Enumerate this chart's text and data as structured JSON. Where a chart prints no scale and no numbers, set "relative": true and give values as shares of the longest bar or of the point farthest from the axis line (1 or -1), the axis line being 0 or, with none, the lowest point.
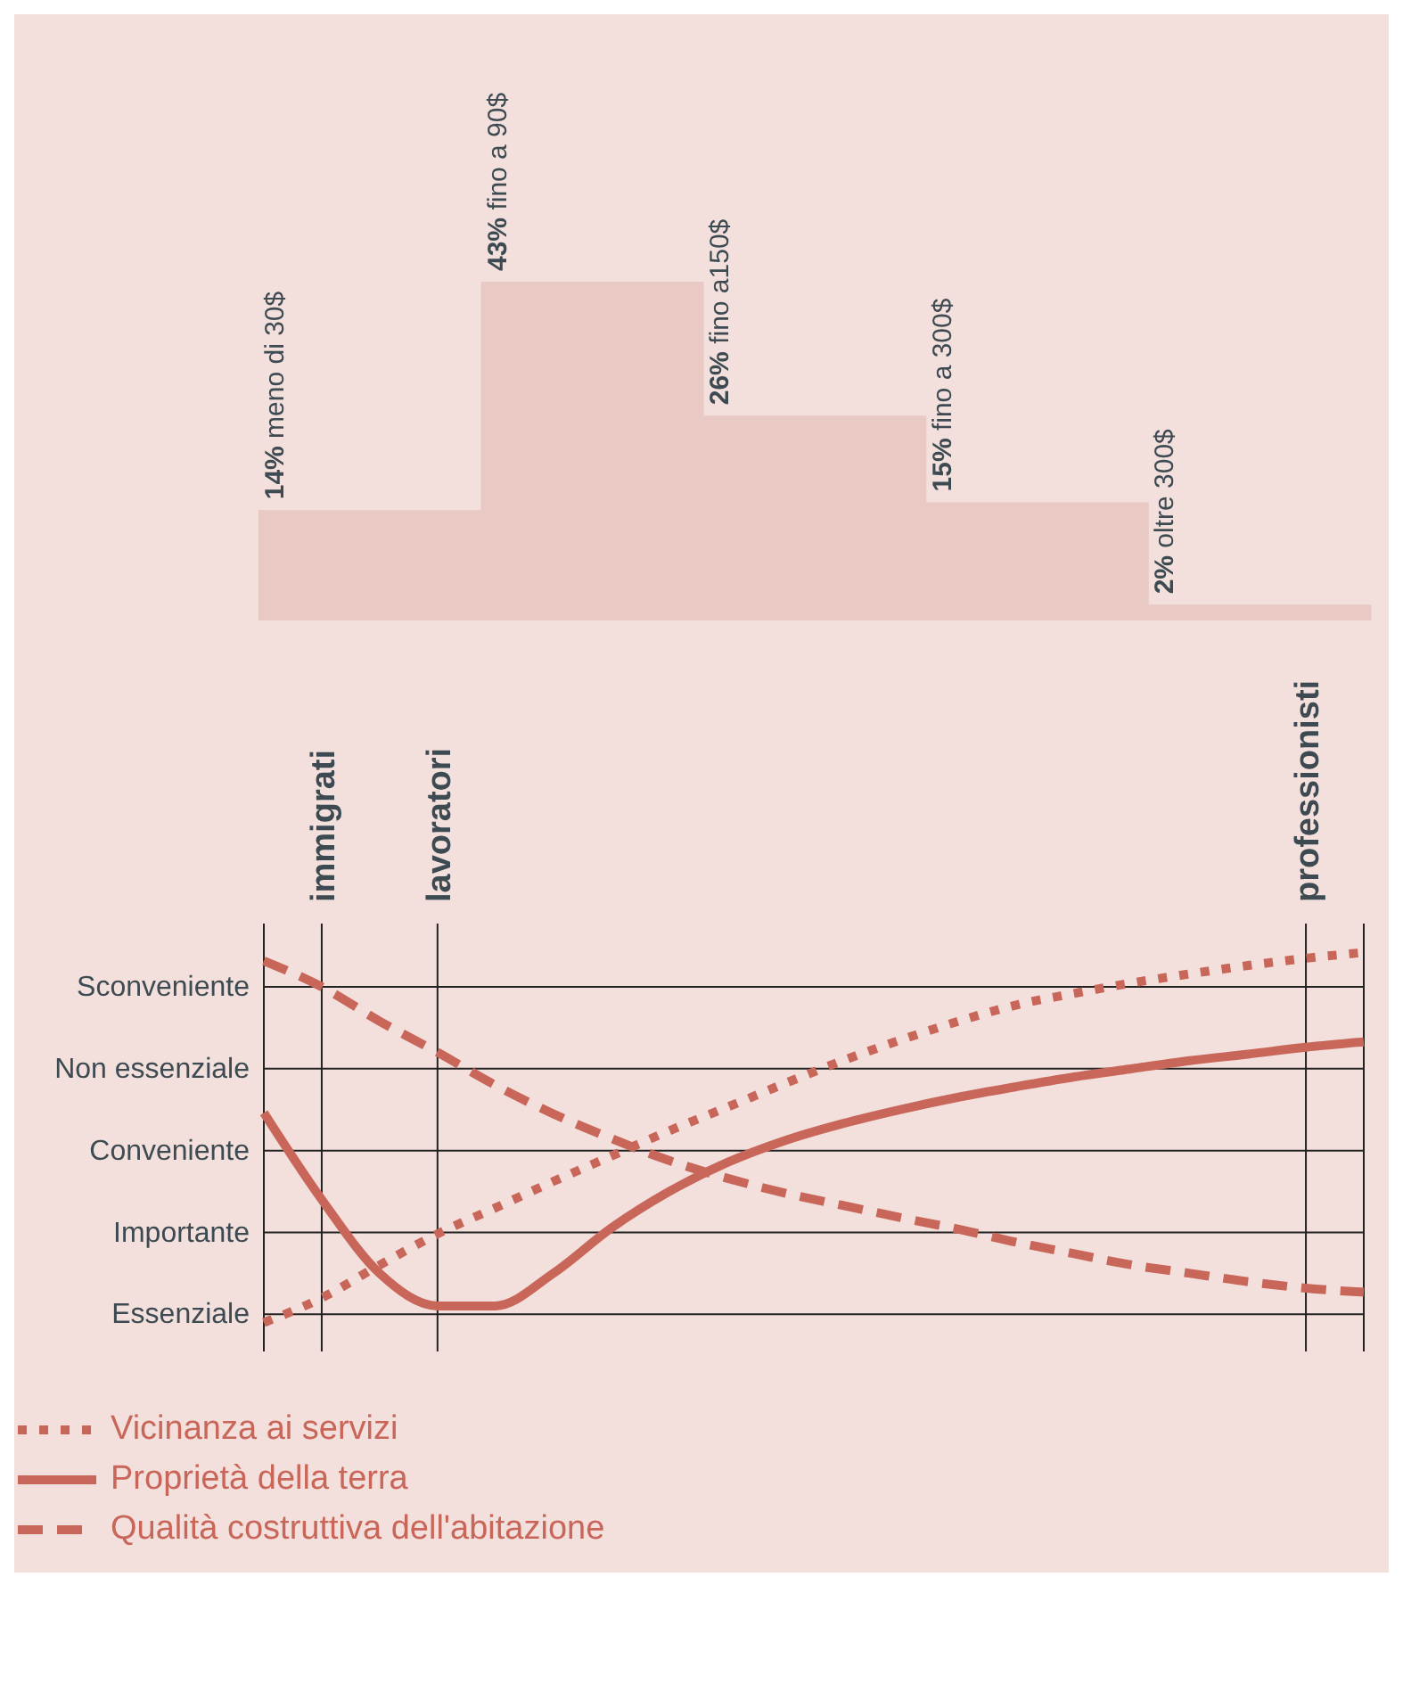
{
  "chart_data": [
    {
      "type": "bar",
      "categories": [
        null,
        null,
        null,
        null,
        null
      ],
      "values": [
        14,
        43,
        26,
        15,
        2
      ],
      "value_labels": [
        "14% meno di 30$",
        "43% fino a 90$",
        "26% fino a150$",
        "15% fino a 300$",
        "2% oltre 300$"
      ],
      "color": "#e8c9c3"
    },
    {
      "type": "line",
      "categories": [
        null,
        "immigrati",
        null,
        "lavoratori",
        null,
        null,
        null,
        null,
        null,
        null,
        null,
        null,
        null,
        null,
        null,
        null,
        null,
        null,
        "professionisti",
        null
      ],
      "relative": true,
      "ref_lines": [
        {
          "axis": "y",
          "value": 0,
          "label": "Essenziale"
        },
        {
          "axis": "y",
          "value": 0.226,
          "label": "Importante"
        },
        {
          "axis": "y",
          "value": 0.452,
          "label": "Conveniente"
        },
        {
          "axis": "y",
          "value": 0.679,
          "label": "Non essenziale"
        },
        {
          "axis": "y",
          "value": 0.905,
          "label": "Sconveniente"
        }
      ],
      "grid": "x",
      "legend": "bottom",
      "marker": "none",
      "series": [
        {
          "name": "Vicinanza ai servizi",
          "color": "#c9665a",
          "line_style": "dotted",
          "values": [
            -0.023,
            0.045,
            0.136,
            0.222,
            0.294,
            0.367,
            0.437,
            0.507,
            0.572,
            0.638,
            0.701,
            0.758,
            0.81,
            0.855,
            0.887,
            0.916,
            0.941,
            0.964,
            0.984,
            1
          ]
        },
        {
          "name": "Proprietà della terra",
          "color": "#c9665a",
          "line_style": "solid",
          "values": [
            0.557,
            0.317,
            0.113,
            0.023,
            0.023,
            0.113,
            0.238,
            0.339,
            0.419,
            0.48,
            0.527,
            0.566,
            0.6,
            0.629,
            0.656,
            0.679,
            0.701,
            0.719,
            0.738,
            0.753
          ]
        },
        {
          "name": "Qualità costruttiva dell'abitazione",
          "color": "#c9665a",
          "line_style": "dashed",
          "values": [
            0.977,
            0.905,
            0.81,
            0.724,
            0.633,
            0.554,
            0.486,
            0.425,
            0.376,
            0.335,
            0.301,
            0.267,
            0.235,
            0.199,
            0.167,
            0.136,
            0.113,
            0.09,
            0.072,
            0.061
          ]
        }
      ]
    }
  ]
}
